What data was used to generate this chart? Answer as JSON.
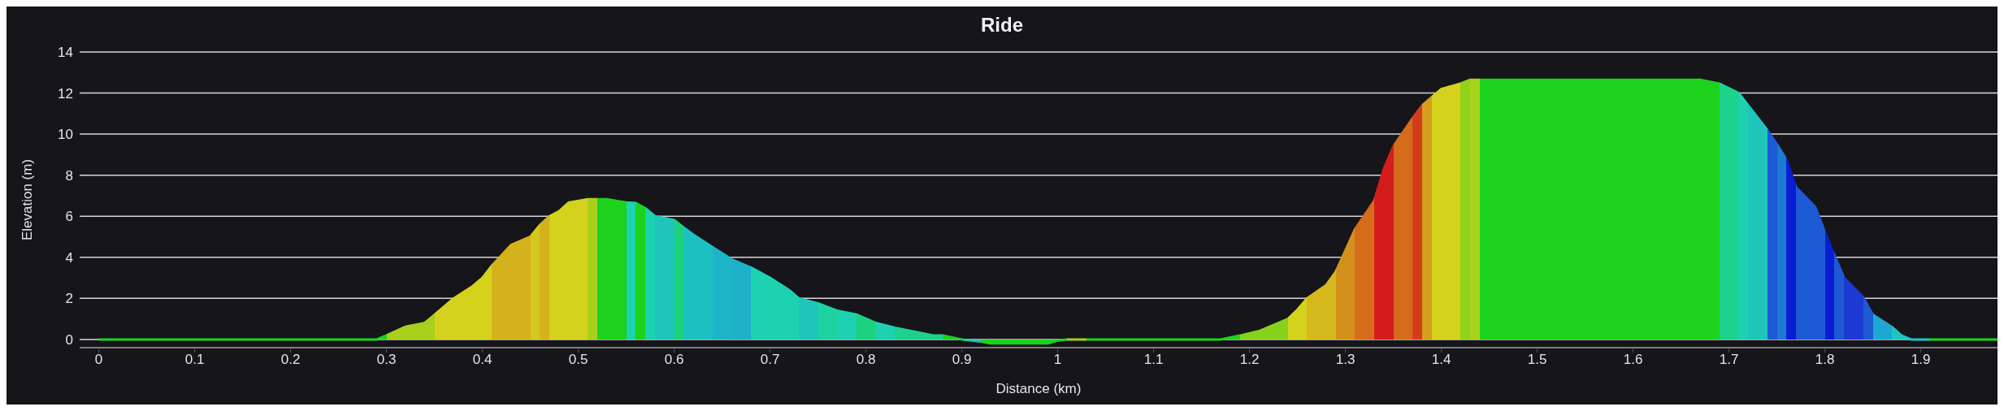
{
  "chart_data": {
    "type": "area",
    "title": "Ride",
    "xlabel": "Distance (km)",
    "ylabel": "Elevation (m)",
    "xlim": [
      -0.02,
      1.98
    ],
    "xticks": [
      0,
      0.1,
      0.2,
      0.3,
      0.4,
      0.5,
      0.6,
      0.7,
      0.8,
      0.9,
      1,
      1.1,
      1.2,
      1.3,
      1.4,
      1.5,
      1.6,
      1.7,
      1.8,
      1.9
    ],
    "ylim": [
      -0.4,
      14
    ],
    "yticks": [
      0,
      2,
      4,
      6,
      8,
      10,
      12,
      14
    ],
    "grid": "y",
    "x": [
      0,
      0.29,
      0.3,
      0.32,
      0.34,
      0.35,
      0.37,
      0.39,
      0.4,
      0.41,
      0.43,
      0.45,
      0.46,
      0.47,
      0.48,
      0.49,
      0.51,
      0.52,
      0.53,
      0.55,
      0.56,
      0.57,
      0.58,
      0.6,
      0.61,
      0.62,
      0.64,
      0.66,
      0.68,
      0.7,
      0.72,
      0.73,
      0.75,
      0.77,
      0.79,
      0.81,
      0.83,
      0.85,
      0.87,
      0.88,
      0.9,
      0.91,
      0.92,
      0.93,
      0.99,
      1,
      1.01,
      1.03,
      1.17,
      1.19,
      1.21,
      1.24,
      1.25,
      1.26,
      1.28,
      1.29,
      1.31,
      1.33,
      1.34,
      1.35,
      1.37,
      1.38,
      1.39,
      1.4,
      1.42,
      1.43,
      1.44,
      1.67,
      1.69,
      1.71,
      1.72,
      1.74,
      1.75,
      1.76,
      1.77,
      1.79,
      1.8,
      1.81,
      1.82,
      1.84,
      1.85,
      1.87,
      1.88,
      1.89,
      1.91,
      1.98
    ],
    "values": [
      0,
      0,
      0.2,
      0.62,
      0.81,
      1.2,
      2,
      2.6,
      3,
      3.6,
      4.6,
      5,
      5.57,
      6,
      6.24,
      6.67,
      6.83,
      6.83,
      6.83,
      6.67,
      6.64,
      6.38,
      6,
      5.81,
      5.45,
      5.1,
      4.5,
      3.9,
      3.5,
      3,
      2.4,
      2,
      1.76,
      1.4,
      1.21,
      0.81,
      0.57,
      0.38,
      0.19,
      0.19,
      0,
      -0.05,
      -0.1,
      -0.19,
      -0.19,
      -0.05,
      0,
      0,
      0,
      0.19,
      0.41,
      1,
      1.45,
      2,
      2.65,
      3.3,
      5.37,
      6.75,
      8.3,
      9.4,
      10.77,
      11.4,
      11.8,
      12.2,
      12.46,
      12.65,
      12.65,
      12.65,
      12.46,
      12,
      11.4,
      10.2,
      9.5,
      8.75,
      7.4,
      6.45,
      5.24,
      4.1,
      3,
      2.05,
      1.2,
      0.6,
      0.19,
      0,
      0,
      0
    ],
    "colors": [
      "#1dd21d",
      "#1dd21d",
      "#a8cf1c",
      "#a8cf1c",
      "#a8cf1c",
      "#d4d21c",
      "#d4d21c",
      "#d4d21c",
      "#d4d21c",
      "#d4b21c",
      "#d4b21c",
      "#d4c81c",
      "#d4b21c",
      "#d4d21c",
      "#d4d21c",
      "#d4d21c",
      "#a8cf1c",
      "#1dd21d",
      "#1dd21d",
      "#1dd2b0",
      "#1dd21d",
      "#1dd2b0",
      "#1dc6b8",
      "#1dd27c",
      "#1dc0c0",
      "#1dc0c0",
      "#1db4c8",
      "#1db0c8",
      "#1dd2b0",
      "#1dd2b0",
      "#1dd2b0",
      "#1dc6b8",
      "#1dd2a0",
      "#1dd2b0",
      "#1dd27c",
      "#1dd2b0",
      "#1dd28c",
      "#1dd28c",
      "#1dd28c",
      "#1dd21d",
      "#1dd28c",
      "#1dc0c0",
      "#1dd21d",
      "#1dd21d",
      "#1dd21d",
      "#1dd21d",
      "#a8cf1c",
      "#1dd21d",
      "#1dd21d",
      "#84d21c",
      "#84d21c",
      "#d4d21c",
      "#d4d21c",
      "#d4b81c",
      "#d4b81c",
      "#d4901c",
      "#d46c1c",
      "#d41c1c",
      "#d41c1c",
      "#d46c1c",
      "#d43c1c",
      "#d4a01c",
      "#d4d21c",
      "#d4d21c",
      "#90d21c",
      "#a8d21c",
      "#1dd21d",
      "#1dd21d",
      "#1dd28c",
      "#1dd2b0",
      "#1dc6b8",
      "#1d5ad4",
      "#1d7ad4",
      "#0a1dd4",
      "#1d5ad4",
      "#1d5ad4",
      "#0a1dd4",
      "#1d5ad4",
      "#1d3ad4",
      "#1d5ad4",
      "#1da8d4",
      "#1dc6c0",
      "#1dc6c0",
      "#1dc6c0",
      "#1dd21d",
      "#1dd21d"
    ]
  }
}
